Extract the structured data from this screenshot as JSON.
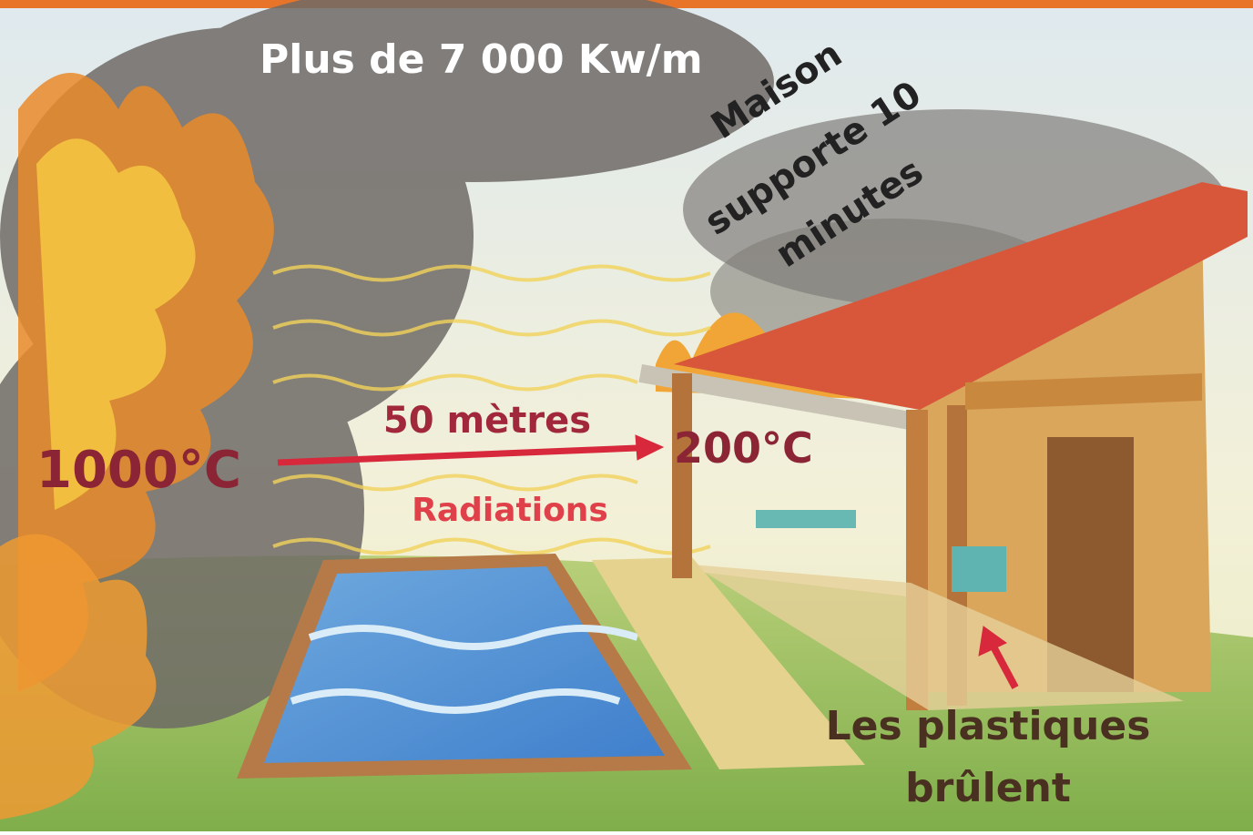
{
  "labels": {
    "heat_flux": "Plus de 7 000 Kw/m",
    "house_lines": [
      "Maison",
      "supporte 10",
      "minutes"
    ],
    "distance": "50 mètres",
    "fire_temp": "1000°C",
    "house_temp": "200°C",
    "radiations": "Radiations",
    "plastics_lines": [
      "Les plastiques",
      "brûlent"
    ]
  }
}
